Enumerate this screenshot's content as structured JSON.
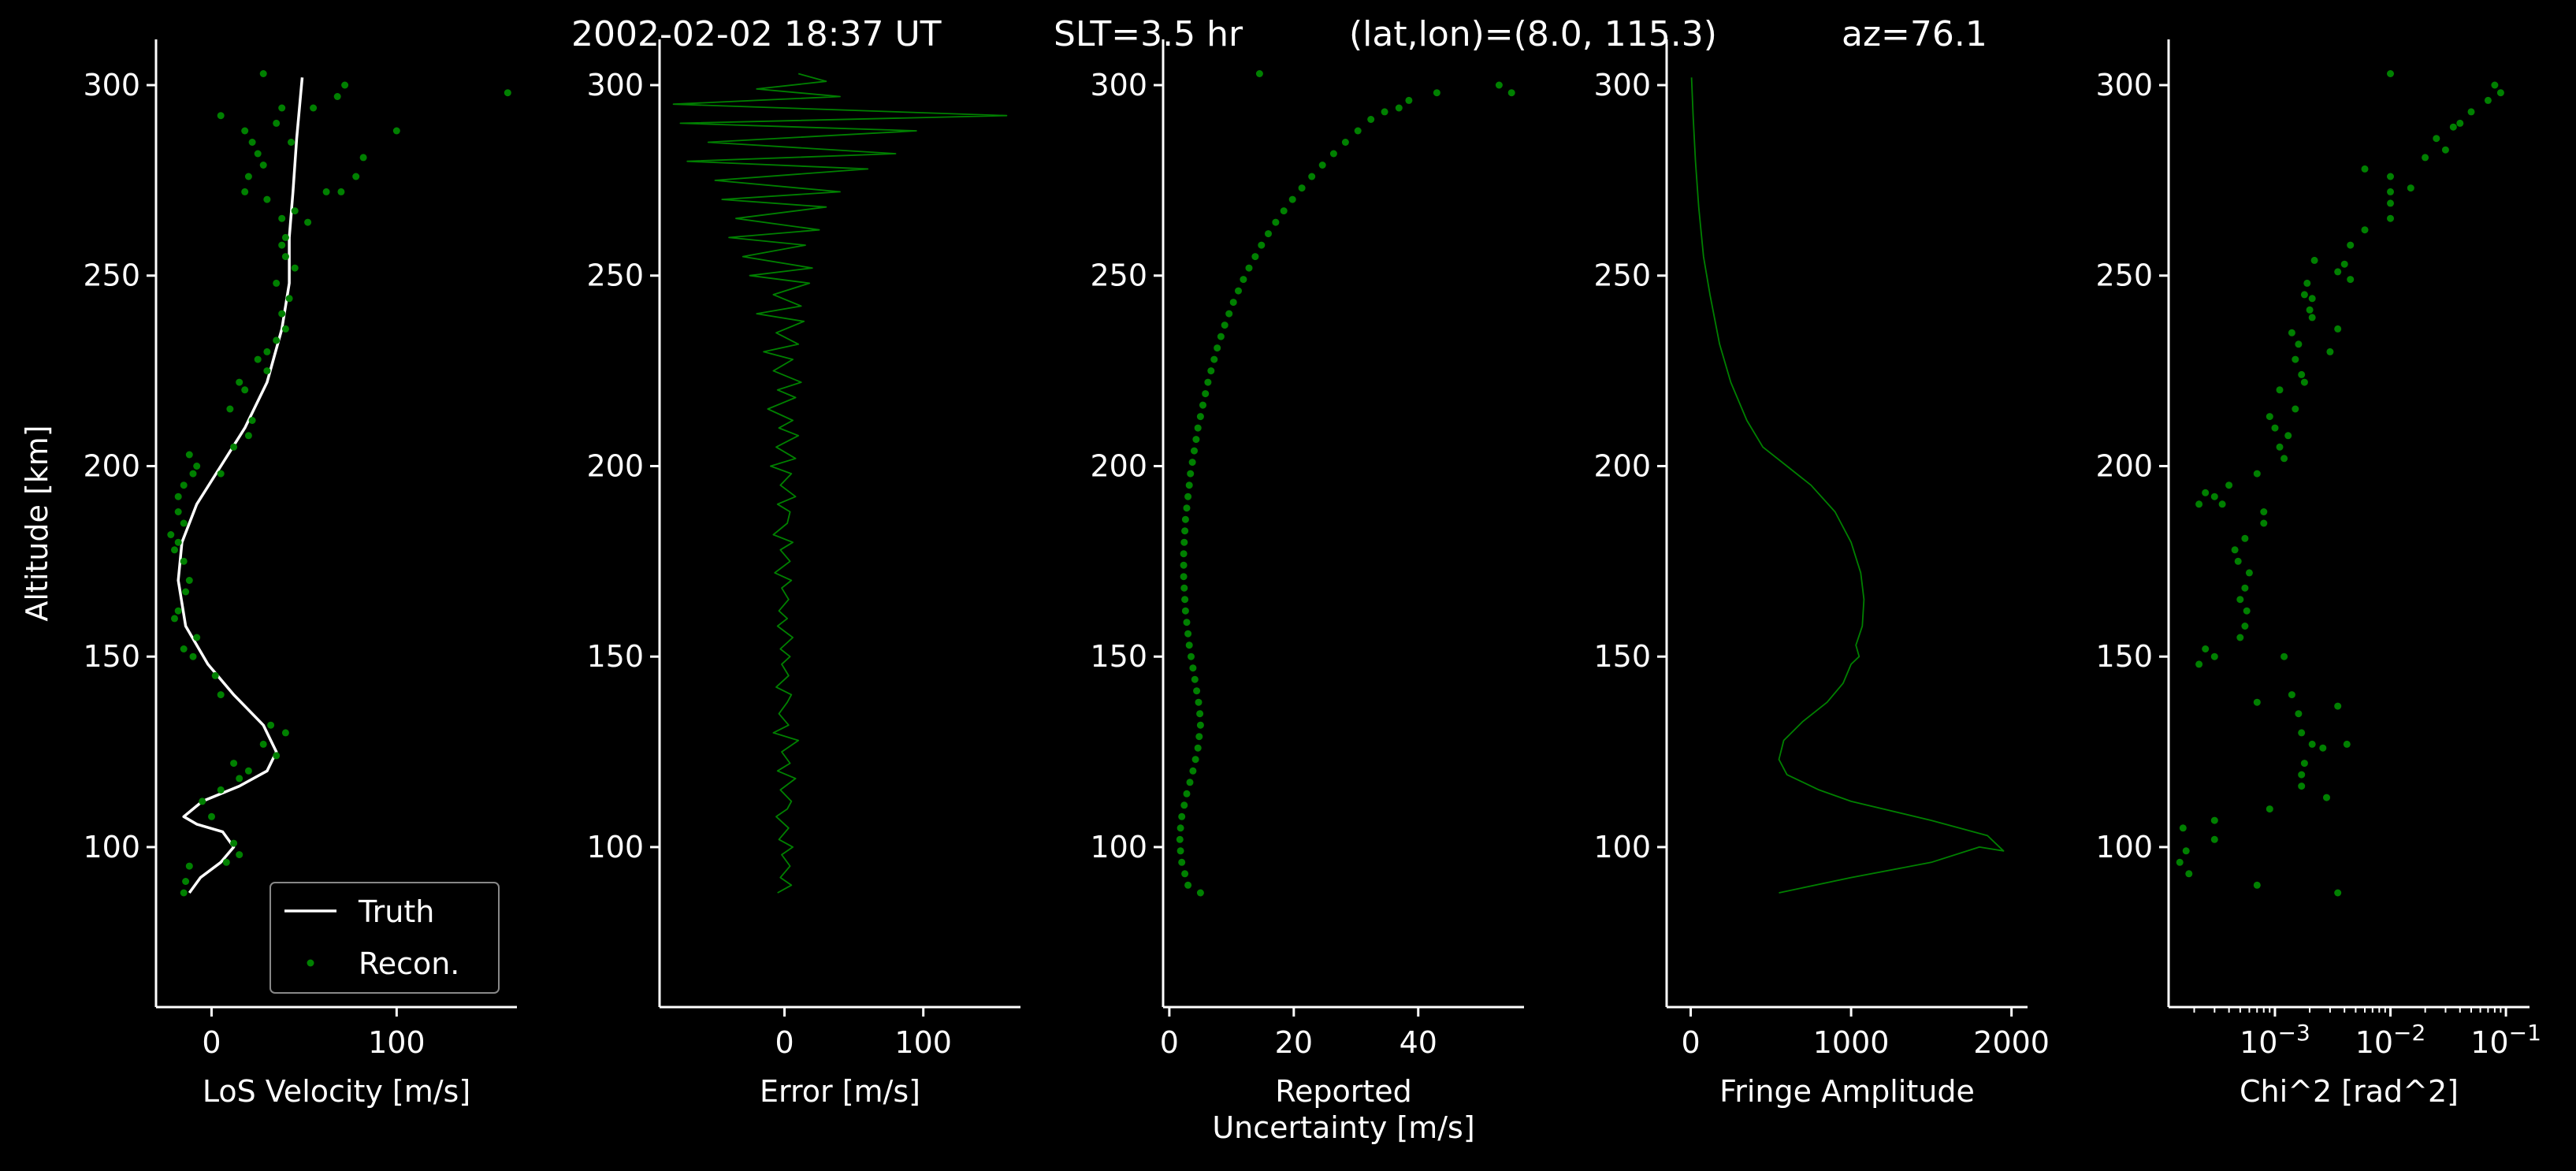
{
  "title": {
    "datetime": "2002-02-02 18:37 UT",
    "slt": "SLT=3.5 hr",
    "latlon": "(lat,lon)=(8.0, 115.3)",
    "az": "az=76.1"
  },
  "chart_data": [
    {
      "type": "line",
      "xlabel": "LoS Velocity [m/s]",
      "ylabel": "Altitude [km]",
      "xlim": [
        -30,
        165
      ],
      "ylim": [
        58,
        312
      ],
      "xticks": [
        0,
        100
      ],
      "xtick_labels": [
        "0",
        "100"
      ],
      "yticks": [
        100,
        150,
        200,
        250,
        300
      ],
      "ytick_labels": [
        "100",
        "150",
        "200",
        "250",
        "300"
      ],
      "legend": {
        "placement": "lower-right",
        "entries": [
          "Truth",
          "Recon."
        ]
      },
      "series": [
        {
          "name": "Truth",
          "kind": "line",
          "color": "#ffffff",
          "x": [
            -12,
            -6,
            5,
            12,
            6,
            -8,
            -15,
            -5,
            15,
            30,
            35,
            28,
            12,
            -2,
            -14,
            -18,
            -16,
            -8,
            5,
            18,
            30,
            38,
            42,
            42,
            44,
            46,
            49
          ],
          "y": [
            88,
            92,
            96,
            100,
            104,
            106,
            108,
            112,
            116,
            120,
            125,
            132,
            140,
            148,
            158,
            170,
            180,
            190,
            200,
            210,
            222,
            236,
            248,
            260,
            272,
            286,
            302
          ]
        },
        {
          "name": "Recon.",
          "kind": "points",
          "color": "#008000",
          "x": [
            -15,
            -14,
            -12,
            8,
            15,
            12,
            0,
            -5,
            5,
            15,
            35,
            28,
            32,
            40,
            20,
            12,
            5,
            2,
            -10,
            -15,
            -8,
            -20,
            -18,
            -14,
            -12,
            -15,
            -20,
            -18,
            -22,
            -15,
            -18,
            -18,
            -15,
            -10,
            -8,
            -12,
            5,
            12,
            20,
            22,
            10,
            18,
            15,
            30,
            25,
            30,
            35,
            40,
            38,
            42,
            35,
            45,
            40,
            38,
            40,
            52,
            45,
            30,
            18,
            20,
            28,
            25,
            22,
            18,
            35,
            55,
            68,
            72,
            62,
            78,
            82,
            100,
            160,
            5,
            38,
            43,
            38,
            70,
            28
          ],
          "y": [
            88,
            91,
            95,
            96,
            98,
            101,
            108,
            112,
            115,
            118,
            124,
            127,
            132,
            130,
            120,
            122,
            140,
            145,
            150,
            152,
            155,
            160,
            162,
            167,
            170,
            175,
            178,
            180,
            182,
            185,
            188,
            192,
            195,
            198,
            200,
            203,
            198,
            205,
            208,
            212,
            215,
            220,
            222,
            225,
            228,
            230,
            233,
            236,
            240,
            244,
            248,
            252,
            255,
            258,
            260,
            264,
            267,
            270,
            272,
            276,
            279,
            282,
            285,
            288,
            290,
            294,
            297,
            300,
            272,
            276,
            281,
            288,
            298,
            292,
            294,
            285,
            265,
            272,
            303
          ]
        }
      ]
    },
    {
      "type": "line",
      "xlabel": "Error [m/s]",
      "xlim": [
        -90,
        170
      ],
      "ylim": [
        58,
        312
      ],
      "xticks": [
        0,
        100
      ],
      "xtick_labels": [
        "0",
        "100"
      ],
      "yticks": [
        100,
        150,
        200,
        250,
        300
      ],
      "ytick_labels": [
        "100",
        "150",
        "200",
        "250",
        "300"
      ],
      "series": [
        {
          "kind": "line",
          "color": "#008000",
          "x": [
            -5,
            5,
            -3,
            4,
            -2,
            6,
            -4,
            3,
            -6,
            2,
            5,
            -3,
            8,
            -5,
            4,
            -2,
            10,
            -8,
            3,
            -4,
            2,
            5,
            -6,
            3,
            -2,
            4,
            -3,
            6,
            -5,
            2,
            -4,
            3,
            -2,
            5,
            -7,
            4,
            -3,
            6,
            -8,
            2,
            4,
            -5,
            8,
            -3,
            5,
            -10,
            8,
            -6,
            10,
            -4,
            6,
            -12,
            8,
            -5,
            12,
            -8,
            6,
            -15,
            10,
            -6,
            14,
            -20,
            12,
            -8,
            18,
            -25,
            20,
            -30,
            15,
            -40,
            25,
            -35,
            30,
            -45,
            40,
            -50,
            60,
            -70,
            80,
            -55,
            95,
            -75,
            160,
            -80,
            40,
            -20,
            30,
            10
          ],
          "y": [
            88,
            90,
            92,
            95,
            98,
            100,
            102,
            105,
            108,
            110,
            112,
            115,
            118,
            120,
            122,
            125,
            128,
            130,
            132,
            135,
            138,
            140,
            142,
            145,
            148,
            150,
            152,
            155,
            158,
            160,
            162,
            165,
            168,
            170,
            172,
            175,
            178,
            180,
            182,
            185,
            188,
            190,
            192,
            195,
            198,
            200,
            202,
            205,
            208,
            210,
            212,
            215,
            218,
            220,
            222,
            225,
            228,
            230,
            232,
            235,
            238,
            240,
            242,
            245,
            248,
            250,
            252,
            255,
            258,
            260,
            262,
            265,
            268,
            270,
            272,
            275,
            278,
            280,
            282,
            285,
            288,
            290,
            292,
            295,
            297,
            299,
            301,
            303
          ]
        }
      ]
    },
    {
      "type": "scatter",
      "xlabel": "Reported Uncertainty [m/s]",
      "xlim": [
        -1,
        57
      ],
      "ylim": [
        58,
        312
      ],
      "xticks": [
        0,
        20,
        40
      ],
      "xtick_labels": [
        "0",
        "20",
        "40"
      ],
      "yticks": [
        100,
        150,
        200,
        250,
        300
      ],
      "ytick_labels": [
        "100",
        "150",
        "200",
        "250",
        "300"
      ],
      "series": [
        {
          "kind": "points",
          "color": "#008000",
          "x": [
            5.0,
            3.0,
            2.5,
            2.0,
            1.8,
            1.7,
            1.8,
            2.0,
            2.4,
            2.8,
            3.3,
            3.8,
            4.2,
            4.6,
            4.8,
            5.0,
            4.9,
            4.7,
            4.4,
            4.1,
            3.8,
            3.5,
            3.2,
            3.0,
            2.8,
            2.6,
            2.5,
            2.4,
            2.3,
            2.3,
            2.3,
            2.4,
            2.5,
            2.6,
            2.8,
            3.0,
            3.2,
            3.4,
            3.7,
            4.0,
            4.3,
            4.6,
            5.0,
            5.4,
            5.8,
            6.2,
            6.7,
            7.2,
            7.7,
            8.3,
            8.9,
            9.6,
            10.3,
            11.1,
            11.9,
            12.8,
            13.8,
            14.8,
            15.9,
            17.1,
            18.4,
            19.8,
            21.3,
            22.9,
            24.6,
            26.4,
            28.3,
            30.3,
            32.4,
            34.6,
            36.9,
            38.5,
            43.0,
            53.0,
            55.0,
            14.5
          ],
          "y": [
            88,
            90,
            93,
            96,
            99,
            102,
            105,
            108,
            111,
            114,
            117,
            120,
            123,
            126,
            129,
            132,
            135,
            138,
            141,
            144,
            147,
            150,
            153,
            156,
            159,
            162,
            165,
            168,
            171,
            174,
            177,
            180,
            183,
            186,
            189,
            192,
            195,
            198,
            201,
            204,
            207,
            210,
            213,
            216,
            219,
            222,
            225,
            228,
            231,
            234,
            237,
            240,
            243,
            246,
            249,
            252,
            255,
            258,
            261,
            264,
            267,
            270,
            273,
            276,
            279,
            282,
            285,
            288,
            291,
            293,
            294,
            296,
            298,
            300,
            298,
            303
          ]
        }
      ]
    },
    {
      "type": "line",
      "xlabel": "Fringe Amplitude",
      "xlim": [
        -150,
        2100
      ],
      "ylim": [
        58,
        312
      ],
      "xticks": [
        0,
        1000,
        2000
      ],
      "xtick_labels": [
        "0",
        "1000",
        "2000"
      ],
      "yticks": [
        100,
        150,
        200,
        250,
        300
      ],
      "ytick_labels": [
        "100",
        "150",
        "200",
        "250",
        "300"
      ],
      "series": [
        {
          "kind": "line",
          "color": "#008000",
          "x": [
            550,
            1000,
            1500,
            1800,
            1950,
            1850,
            1500,
            1000,
            800,
            600,
            550,
            580,
            700,
            850,
            950,
            1000,
            1050,
            1030,
            1070,
            1080,
            1060,
            1000,
            900,
            750,
            600,
            450,
            350,
            250,
            180,
            120,
            80,
            50,
            30,
            15,
            5
          ],
          "y": [
            88,
            92,
            96,
            100,
            99,
            103,
            107,
            112,
            115,
            119,
            123,
            128,
            133,
            138,
            143,
            148,
            150,
            153,
            158,
            165,
            172,
            180,
            188,
            195,
            200,
            205,
            212,
            222,
            232,
            245,
            255,
            268,
            280,
            292,
            302
          ]
        }
      ]
    },
    {
      "type": "scatter",
      "xlabel": "Chi^2 [rad^2]",
      "xscale": "log",
      "xlim": [
        0.00012,
        0.16
      ],
      "ylim": [
        58,
        312
      ],
      "xticks": [
        0.001,
        0.01,
        0.1
      ],
      "xtick_labels": [
        "10^-3",
        "10^-2",
        "10^-1"
      ],
      "xtick_base": "10",
      "xtick_exponents": [
        "−3",
        "−2",
        "−1"
      ],
      "yticks": [
        100,
        150,
        200,
        250,
        300
      ],
      "ytick_labels": [
        "100",
        "150",
        "200",
        "250",
        "300"
      ],
      "series": [
        {
          "kind": "points",
          "color": "#008000",
          "x": [
            0.0035,
            0.0007,
            0.00018,
            0.00015,
            0.00017,
            0.00016,
            0.0003,
            0.0003,
            0.0009,
            0.0028,
            0.0017,
            0.0017,
            0.0018,
            0.0021,
            0.0026,
            0.0017,
            0.0042,
            0.0035,
            0.0014,
            0.0012,
            0.0016,
            0.0003,
            0.0007,
            0.00022,
            0.00025,
            0.0005,
            0.00055,
            0.00057,
            0.0005,
            0.00055,
            0.0006,
            0.00048,
            0.00045,
            0.0008,
            0.00055,
            0.0008,
            0.0004,
            0.0003,
            0.00035,
            0.00025,
            0.00022,
            0.0007,
            0.0012,
            0.0011,
            0.0013,
            0.001,
            0.0009,
            0.0015,
            0.0011,
            0.0018,
            0.0017,
            0.0015,
            0.003,
            0.0016,
            0.0014,
            0.0021,
            0.0035,
            0.002,
            0.0018,
            0.0019,
            0.0035,
            0.004,
            0.0022,
            0.0021,
            0.0045,
            0.0045,
            0.006,
            0.01,
            0.01,
            0.01,
            0.015,
            0.01,
            0.006,
            0.02,
            0.03,
            0.025,
            0.035,
            0.04,
            0.05,
            0.07,
            0.09,
            0.08,
            0.01
          ],
          "y": [
            88,
            90,
            93,
            96,
            99,
            105,
            102,
            107,
            110,
            113,
            116,
            119,
            122,
            127,
            126,
            130,
            127,
            137,
            140,
            150,
            135,
            150,
            138,
            148,
            152,
            155,
            158,
            162,
            165,
            168,
            172,
            175,
            178,
            185,
            181,
            188,
            195,
            192,
            190,
            193,
            190,
            198,
            202,
            205,
            208,
            210,
            213,
            215,
            220,
            222,
            224,
            228,
            230,
            232,
            235,
            239,
            236,
            241,
            245,
            248,
            251,
            253,
            254,
            244,
            249,
            258,
            262,
            265,
            269,
            272,
            273,
            276,
            278,
            281,
            283,
            286,
            289,
            290,
            293,
            296,
            298,
            300,
            303
          ]
        }
      ]
    }
  ]
}
